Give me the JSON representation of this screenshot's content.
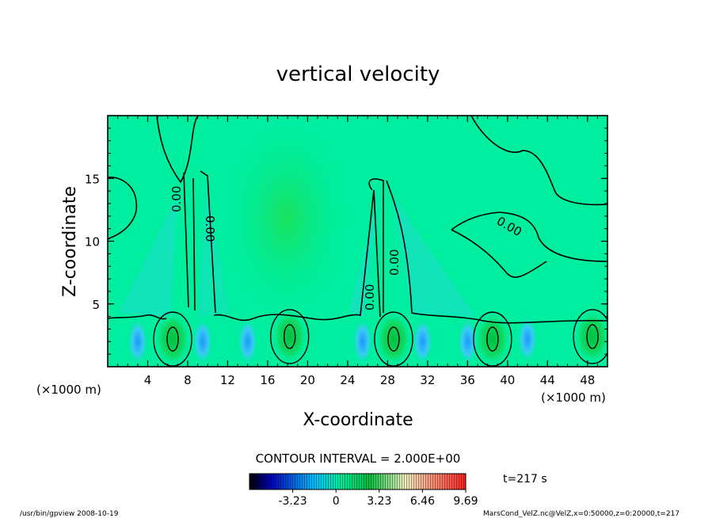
{
  "chart_data": {
    "type": "contour",
    "title": "vertical velocity",
    "xlabel": "X-coordinate",
    "ylabel": "Z-coordinate",
    "x_unit_label": "(×1000 m)",
    "y_unit_label": "(×1000 m)",
    "xlim": [
      0,
      50
    ],
    "ylim": [
      0,
      20
    ],
    "x_ticks": [
      4,
      8,
      12,
      16,
      20,
      24,
      28,
      32,
      36,
      40,
      44,
      48
    ],
    "y_ticks": [
      5,
      10,
      15
    ],
    "contour_interval_text": "CONTOUR INTERVAL = 2.000E+00",
    "contour_labels": [
      "0.00",
      "0.00",
      "0.00",
      "0.00",
      "0.00"
    ],
    "time_label": "t=217 s",
    "colorbar": {
      "tick_labels": [
        "-3.23",
        "0",
        "3.23",
        "6.46",
        "9.69"
      ],
      "tick_values": [
        -3.23,
        0,
        3.23,
        6.46,
        9.69
      ],
      "range": [
        -6.46,
        9.69
      ],
      "colors": [
        "#000000",
        "#0000c0",
        "#00c0ff",
        "#00f0a0",
        "#00c040",
        "#f0f0c0",
        "#ff2020"
      ]
    },
    "footer_left": "/usr/bin/gpview   2008-10-19",
    "footer_right": "MarsCond_VelZ.nc@VelZ,x=0:50000,z=0:20000,t=217",
    "positive_cores": [
      {
        "x": 6.5,
        "z": 2.2
      },
      {
        "x": 18.2,
        "z": 2.4
      },
      {
        "x": 28.6,
        "z": 2.2
      },
      {
        "x": 38.5,
        "z": 2.2
      },
      {
        "x": 48.5,
        "z": 2.4
      }
    ],
    "negative_cores": [
      {
        "x": 3.0,
        "z": 2.0
      },
      {
        "x": 9.5,
        "z": 2.0
      },
      {
        "x": 14.0,
        "z": 2.0
      },
      {
        "x": 25.5,
        "z": 2.0
      },
      {
        "x": 31.5,
        "z": 2.0
      },
      {
        "x": 36.0,
        "z": 2.0
      },
      {
        "x": 42.0,
        "z": 2.2
      }
    ]
  }
}
